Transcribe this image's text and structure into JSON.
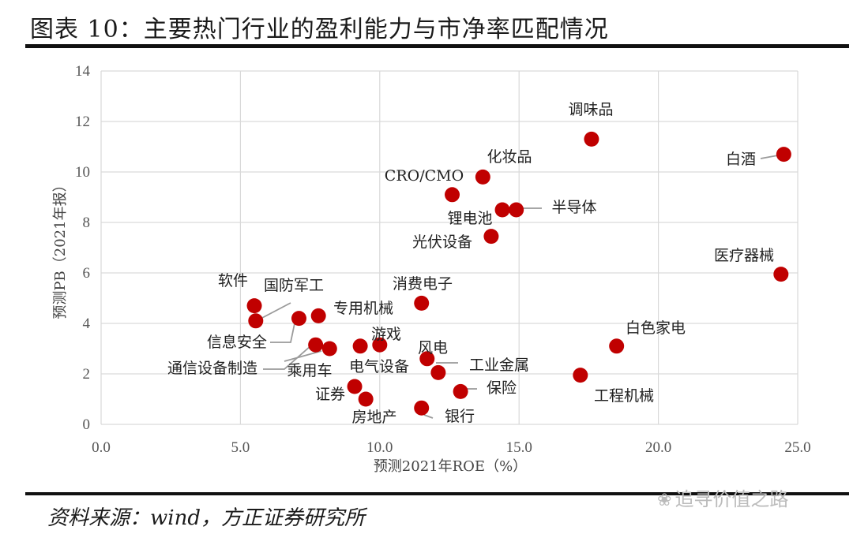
{
  "title": "图表 10：主要热门行业的盈利能力与市净率匹配情况",
  "source": "资料来源：wind，方正证券研究所",
  "watermark": {
    "text": "追寻价值之路",
    "icon": "wechat-icon"
  },
  "chart_data": {
    "type": "scatter",
    "xlabel": "预测2021年ROE（%）",
    "ylabel": "预测PB（2021年报）",
    "xlim": [
      0,
      25
    ],
    "ylim": [
      0,
      14
    ],
    "x_ticks": [
      "0.0",
      "5.0",
      "10.0",
      "15.0",
      "20.0",
      "25.0"
    ],
    "y_ticks": [
      "0",
      "2",
      "4",
      "6",
      "8",
      "10",
      "12",
      "14"
    ],
    "grid": true,
    "marker_color": "#c00000",
    "points": [
      {
        "label": "白酒",
        "x": 24.5,
        "y": 10.7
      },
      {
        "label": "调味品",
        "x": 17.6,
        "y": 11.3
      },
      {
        "label": "化妆品",
        "x": 13.7,
        "y": 9.8
      },
      {
        "label": "CRO/CMO",
        "x": 12.6,
        "y": 9.1
      },
      {
        "label": "锂电池",
        "x": 14.4,
        "y": 8.5
      },
      {
        "label": "半导体",
        "x": 14.9,
        "y": 8.5
      },
      {
        "label": "光伏设备",
        "x": 14.0,
        "y": 7.45
      },
      {
        "label": "医疗器械",
        "x": 24.4,
        "y": 5.95
      },
      {
        "label": "消费电子",
        "x": 11.5,
        "y": 4.8
      },
      {
        "label": "软件",
        "x": 5.5,
        "y": 4.7
      },
      {
        "label": "国防军工",
        "x": 5.55,
        "y": 4.1
      },
      {
        "label": "专用机械",
        "x": 7.8,
        "y": 4.3
      },
      {
        "label": "信息安全",
        "x": 7.1,
        "y": 4.2
      },
      {
        "label": "通信设备制造",
        "x": 7.7,
        "y": 3.15
      },
      {
        "label": "乘用车",
        "x": 8.2,
        "y": 3.0
      },
      {
        "label": "电气设备",
        "x": 9.3,
        "y": 3.1
      },
      {
        "label": "游戏",
        "x": 10.0,
        "y": 3.15
      },
      {
        "label": "风电",
        "x": 11.7,
        "y": 2.6
      },
      {
        "label": "工业金属",
        "x": 12.1,
        "y": 2.05
      },
      {
        "label": "白色家电",
        "x": 18.5,
        "y": 3.1
      },
      {
        "label": "工程机械",
        "x": 17.2,
        "y": 1.95
      },
      {
        "label": "证券",
        "x": 9.1,
        "y": 1.5
      },
      {
        "label": "房地产",
        "x": 9.5,
        "y": 1.0
      },
      {
        "label": "保险",
        "x": 12.9,
        "y": 1.3
      },
      {
        "label": "银行",
        "x": 11.5,
        "y": 0.65
      }
    ]
  }
}
